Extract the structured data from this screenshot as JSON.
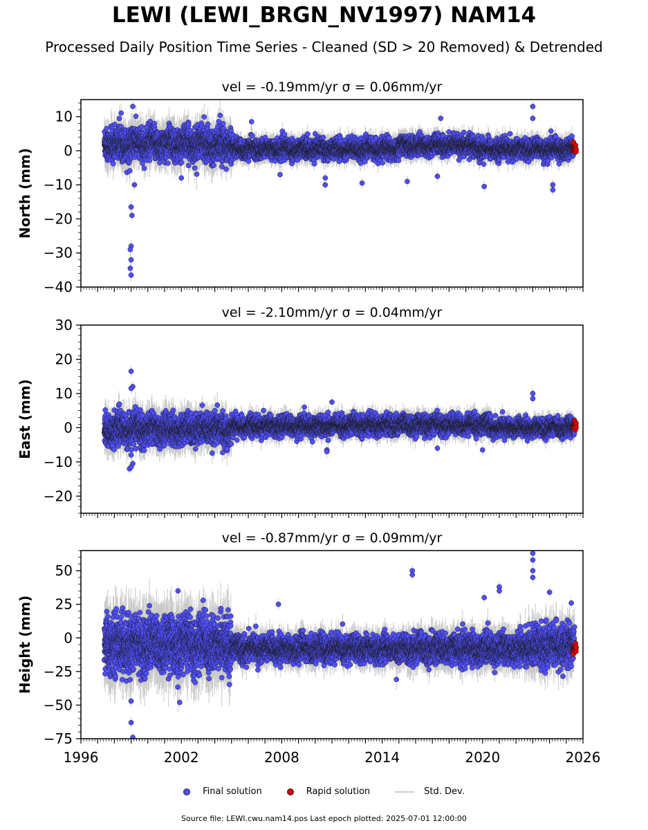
{
  "title": "LEWI (LEWI_BRGN_NV1997) NAM14",
  "subtitle": "Processed Daily Position Time Series - Cleaned (SD > 20 Removed) & Detrended",
  "legend": {
    "final": "Final solution",
    "rapid": "Rapid solution",
    "std": "Std. Dev."
  },
  "footer": "Source file: LEWI.cwu.nam14.pos  Last epoch plotted: 2025-07-01 12:00:00",
  "colors": {
    "final": "#4f4fff",
    "rapid": "#e00000",
    "std": "#bdbdbd",
    "edge": "#1a1a1a"
  },
  "chart_data": [
    {
      "type": "scatter",
      "panel_title": "vel = -0.19mm/yr   σ = 0.06mm/yr",
      "ylabel": "North (mm)",
      "xlim": [
        1996,
        2026
      ],
      "ylim": [
        -40,
        15
      ],
      "yticks": [
        10,
        0,
        -10,
        -20,
        -30,
        -40
      ],
      "ytick_labels": [
        "10",
        "0",
        "−10",
        "−20",
        "−30",
        "−40"
      ],
      "series": [
        {
          "name": "Final solution",
          "values_summary": {
            "segments": [
              {
                "from": 1997.4,
                "to": 2005.0,
                "mean": 2.0,
                "spread": 3.0
              },
              {
                "from": 2005.0,
                "to": 2015.0,
                "mean": 0.5,
                "spread": 1.8
              },
              {
                "from": 2015.0,
                "to": 2019.8,
                "mean": 1.5,
                "spread": 1.8
              },
              {
                "from": 2019.8,
                "to": 2025.5,
                "mean": 0.5,
                "spread": 1.8
              }
            ],
            "outliers": [
              [
                1999.1,
                13.0
              ],
              [
                1999.0,
                -16.5
              ],
              [
                1999.05,
                -19.0
              ],
              [
                1999.0,
                -28.0
              ],
              [
                1998.95,
                -29.0
              ],
              [
                1999.0,
                -32.0
              ],
              [
                1998.95,
                -34.5
              ],
              [
                1999.0,
                -36.5
              ],
              [
                1999.2,
                -10.0
              ],
              [
                2002.0,
                -8.0
              ],
              [
                2006.2,
                8.5
              ],
              [
                2007.9,
                -7.0
              ],
              [
                2010.0,
                5.0
              ],
              [
                2010.6,
                -10.0
              ],
              [
                2010.6,
                -8.0
              ],
              [
                2012.8,
                -9.5
              ],
              [
                2015.5,
                -9.0
              ],
              [
                2017.5,
                9.5
              ],
              [
                2017.3,
                -7.5
              ],
              [
                2020.1,
                -10.5
              ],
              [
                2023.0,
                13.0
              ],
              [
                2023.0,
                9.5
              ],
              [
                2024.2,
                -10.0
              ],
              [
                2024.2,
                -11.5
              ]
            ]
          }
        },
        {
          "name": "Rapid solution",
          "values_summary": {
            "from": 2025.4,
            "to": 2025.6,
            "mean": 0.5,
            "spread": 1.0
          }
        }
      ]
    },
    {
      "type": "scatter",
      "panel_title": "vel = -2.10mm/yr   σ = 0.04mm/yr",
      "ylabel": "East (mm)",
      "xlim": [
        1996,
        2026
      ],
      "ylim": [
        -25,
        30
      ],
      "yticks": [
        30,
        20,
        10,
        0,
        -10,
        -20
      ],
      "ytick_labels": [
        "30",
        "20",
        "10",
        "0",
        "−10",
        "−20"
      ],
      "series": [
        {
          "name": "Final solution",
          "values_summary": {
            "segments": [
              {
                "from": 1997.4,
                "to": 2005.0,
                "mean": -0.5,
                "spread": 2.8
              },
              {
                "from": 2005.0,
                "to": 2012.0,
                "mean": 0.5,
                "spread": 1.8
              },
              {
                "from": 2012.0,
                "to": 2020.5,
                "mean": 0.8,
                "spread": 1.8
              },
              {
                "from": 2020.5,
                "to": 2025.5,
                "mean": 0.0,
                "spread": 1.6
              }
            ],
            "outliers": [
              [
                1999.0,
                16.5
              ],
              [
                1999.1,
                12.0
              ],
              [
                1999.0,
                11.5
              ],
              [
                1998.9,
                -12.0
              ],
              [
                1999.0,
                -11.5
              ],
              [
                1999.1,
                -10.5
              ],
              [
                1999.0,
                -8.0
              ],
              [
                2010.7,
                -6.5
              ],
              [
                2010.7,
                -7.0
              ],
              [
                2011.0,
                7.5
              ],
              [
                2017.3,
                -6.0
              ],
              [
                2020.0,
                -6.5
              ],
              [
                2023.0,
                10.0
              ],
              [
                2023.0,
                8.5
              ]
            ]
          }
        },
        {
          "name": "Rapid solution",
          "values_summary": {
            "from": 2025.4,
            "to": 2025.6,
            "mean": 0.8,
            "spread": 1.0
          }
        }
      ]
    },
    {
      "type": "scatter",
      "panel_title": "vel = -0.87mm/yr   σ = 0.09mm/yr",
      "ylabel": "Height (mm)",
      "xlim": [
        1996,
        2026
      ],
      "ylim": [
        -75,
        65
      ],
      "yticks": [
        50,
        25,
        0,
        -25,
        -50,
        -75
      ],
      "ytick_labels": [
        "50",
        "25",
        "0",
        "−25",
        "−50",
        "−75"
      ],
      "xticks": [
        1996,
        2002,
        2008,
        2014,
        2020,
        2026
      ],
      "series": [
        {
          "name": "Final solution",
          "values_summary": {
            "segments": [
              {
                "from": 1997.4,
                "to": 2005.0,
                "mean": -5.0,
                "spread": 13.0
              },
              {
                "from": 2005.0,
                "to": 2015.5,
                "mean": -8.0,
                "spread": 6.0
              },
              {
                "from": 2015.5,
                "to": 2022.5,
                "mean": -8.0,
                "spread": 7.0
              },
              {
                "from": 2022.5,
                "to": 2025.5,
                "mean": -6.0,
                "spread": 9.0
              }
            ],
            "outliers": [
              [
                1999.0,
                -63.0
              ],
              [
                1999.1,
                -74.0
              ],
              [
                1999.0,
                -47.0
              ],
              [
                2001.8,
                35.0
              ],
              [
                2001.9,
                -48.0
              ],
              [
                2003.3,
                28.0
              ],
              [
                2007.8,
                25.0
              ],
              [
                2015.8,
                50.0
              ],
              [
                2015.8,
                47.0
              ],
              [
                2020.1,
                30.0
              ],
              [
                2021.0,
                38.0
              ],
              [
                2021.0,
                35.0
              ],
              [
                2023.0,
                63.0
              ],
              [
                2023.0,
                58.0
              ],
              [
                2023.0,
                50.0
              ],
              [
                2023.0,
                45.0
              ],
              [
                2024.0,
                34.0
              ],
              [
                2025.3,
                26.0
              ]
            ]
          }
        },
        {
          "name": "Rapid solution",
          "values_summary": {
            "from": 2025.4,
            "to": 2025.6,
            "mean": -8.0,
            "spread": 2.5
          }
        }
      ]
    }
  ]
}
